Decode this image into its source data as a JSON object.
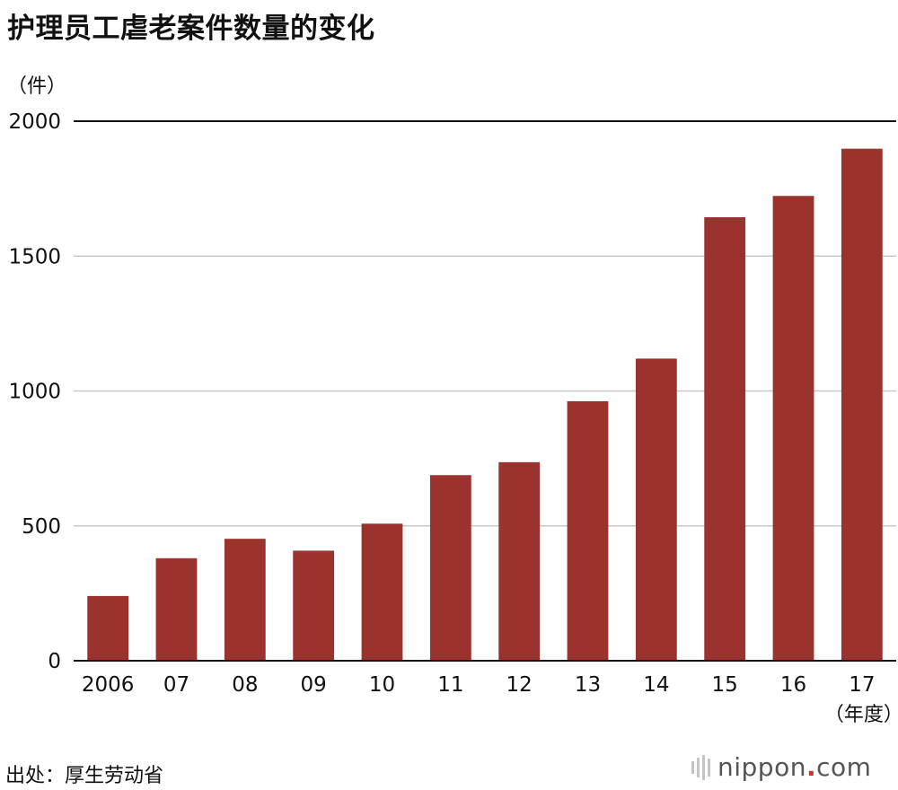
{
  "title": "护理员工虐老案件数量的变化",
  "unit_label": "（件）",
  "source_text": "出处：厚生劳动省",
  "brand": {
    "name_left": "nippon",
    "dot": ".",
    "name_right": "com",
    "accent_color": "#d32f2f"
  },
  "chart_data": {
    "type": "bar",
    "categories": [
      "2006",
      "07",
      "08",
      "09",
      "10",
      "11",
      "12",
      "13",
      "14",
      "15",
      "16",
      "17"
    ],
    "values": [
      240,
      380,
      452,
      408,
      508,
      688,
      736,
      962,
      1120,
      1644,
      1723,
      1898
    ],
    "x_suffix_label": "（年度）",
    "ylabel": "（件）",
    "yticks": [
      0,
      500,
      1000,
      1500,
      2000
    ],
    "ylim": [
      0,
      2000
    ],
    "grid": true,
    "bar_color": "#9a332e",
    "gridline_color": "#c8c8c8",
    "axis_color": "#111111"
  }
}
